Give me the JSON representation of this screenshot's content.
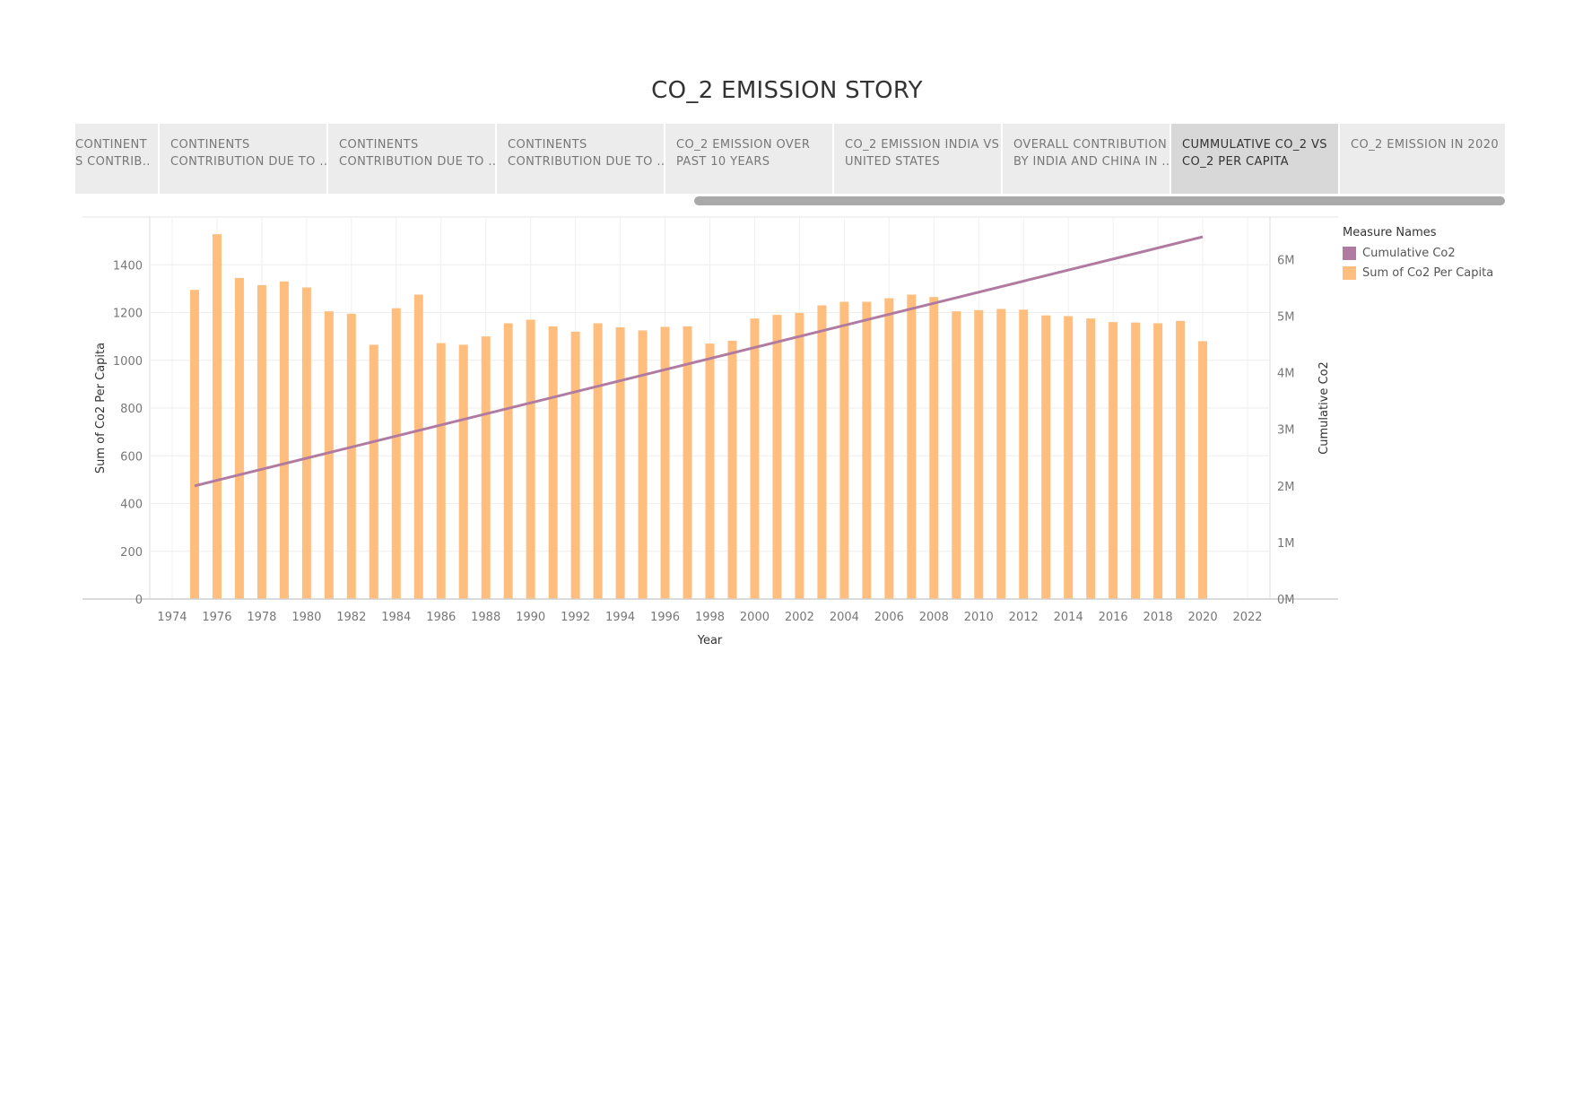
{
  "story": {
    "title": "CO_2 EMISSION STORY",
    "tabs": [
      {
        "line1": "CONTINENT",
        "line2": "S CONTRIB.."
      },
      {
        "line1": "CONTINENTS",
        "line2": "CONTRIBUTION DUE TO .."
      },
      {
        "line1": "CONTINENTS",
        "line2": "CONTRIBUTION DUE TO .."
      },
      {
        "line1": "CONTINENTS",
        "line2": "CONTRIBUTION DUE TO .."
      },
      {
        "line1": "CO_2 EMISSION OVER",
        "line2": "PAST 10 YEARS"
      },
      {
        "line1": "CO_2 EMISSION INDIA VS",
        "line2": "UNITED STATES"
      },
      {
        "line1": "OVERALL CONTRIBUTION",
        "line2": "BY INDIA AND CHINA IN .."
      },
      {
        "line1": "CUMMULATIVE CO_2 VS",
        "line2": "CO_2 PER CAPITA"
      },
      {
        "line1": "CO_2 EMISSION IN 2020",
        "line2": ""
      }
    ],
    "selected_tab": 7
  },
  "legend": {
    "title": "Measure Names",
    "items": [
      {
        "label": "Cumulative Co2",
        "color": "#b07aa1"
      },
      {
        "label": "Sum of Co2 Per Capita",
        "color": "#ffbe7d"
      }
    ]
  },
  "chart_data": {
    "type": "bar",
    "combo": "bar + line (dual axis)",
    "xlabel": "Year",
    "ylabel": "Sum of Co2 Per Capita",
    "y2label": "Cumulative Co2",
    "xlim": [
      1973,
      2023
    ],
    "ylim": [
      0,
      1600
    ],
    "y2lim": [
      0,
      6750000
    ],
    "x_ticks": [
      1974,
      1976,
      1978,
      1980,
      1982,
      1984,
      1986,
      1988,
      1990,
      1992,
      1994,
      1996,
      1998,
      2000,
      2002,
      2004,
      2006,
      2008,
      2010,
      2012,
      2014,
      2016,
      2018,
      2020,
      2022
    ],
    "y_ticks": [
      0,
      200,
      400,
      600,
      800,
      1000,
      1200,
      1400
    ],
    "y2_ticks": [
      {
        "value": 0,
        "label": "0M"
      },
      {
        "value": 1000000,
        "label": "1M"
      },
      {
        "value": 2000000,
        "label": "2M"
      },
      {
        "value": 3000000,
        "label": "3M"
      },
      {
        "value": 4000000,
        "label": "4M"
      },
      {
        "value": 5000000,
        "label": "5M"
      },
      {
        "value": 6000000,
        "label": "6M"
      }
    ],
    "grid": true,
    "legend_position": "right",
    "series": [
      {
        "name": "Sum of Co2 Per Capita",
        "kind": "bar",
        "axis": "left",
        "color": "#ffbe7d",
        "x": [
          1975,
          1976,
          1977,
          1978,
          1979,
          1980,
          1981,
          1982,
          1983,
          1984,
          1985,
          1986,
          1987,
          1988,
          1989,
          1990,
          1991,
          1992,
          1993,
          1994,
          1995,
          1996,
          1997,
          1998,
          1999,
          2000,
          2001,
          2002,
          2003,
          2004,
          2005,
          2006,
          2007,
          2008,
          2009,
          2010,
          2011,
          2012,
          2013,
          2014,
          2015,
          2016,
          2017,
          2018,
          2019,
          2020
        ],
        "values": [
          1295,
          1528,
          1345,
          1315,
          1330,
          1305,
          1205,
          1195,
          1065,
          1218,
          1275,
          1072,
          1065,
          1100,
          1155,
          1170,
          1142,
          1120,
          1155,
          1138,
          1125,
          1140,
          1142,
          1070,
          1082,
          1175,
          1190,
          1198,
          1230,
          1245,
          1245,
          1260,
          1275,
          1265,
          1205,
          1210,
          1215,
          1212,
          1188,
          1185,
          1175,
          1160,
          1158,
          1155,
          1165,
          1080
        ]
      },
      {
        "name": "Cumulative Co2",
        "kind": "line",
        "axis": "right",
        "color": "#b07aa1",
        "x": [
          1975,
          2020
        ],
        "values": [
          2000000,
          6400000
        ]
      }
    ]
  }
}
